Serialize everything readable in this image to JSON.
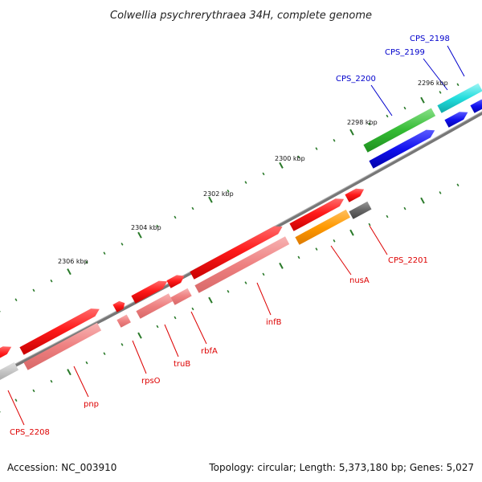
{
  "title": "Colwellia psychrerythraea 34H, complete genome",
  "accession": "Accession: NC_003910",
  "topology": "Topology: circular; Length: 5,373,180 bp; Genes: 5,027",
  "colors": {
    "backbone": "#777777",
    "tick": "#2a7a2a",
    "red_gene": "#ff1a1a",
    "pink_gene": "#f08080",
    "orange_gene": "#ff9900",
    "grey_gene": "#707070",
    "lightgrey_gene": "#c8c8c8",
    "green_gene": "#33bb33",
    "blue_gene": "#1010ee",
    "cyan_gene": "#22dddd",
    "red_label": "#dd0000",
    "blue_label": "#0000cc"
  },
  "scale_labels": [
    {
      "text": "2296 kbp"
    },
    {
      "text": "2298 kbp"
    },
    {
      "text": "2300 kbp"
    },
    {
      "text": "2302 kbp"
    },
    {
      "text": "2304 kbp"
    },
    {
      "text": "2306 kbp"
    }
  ],
  "gene_labels": [
    {
      "text": "CPS_2198",
      "color": "blue"
    },
    {
      "text": "CPS_2199",
      "color": "blue"
    },
    {
      "text": "CPS_2200",
      "color": "blue"
    },
    {
      "text": "CPS_2201",
      "color": "red"
    },
    {
      "text": "nusA",
      "color": "red"
    },
    {
      "text": "infB",
      "color": "red"
    },
    {
      "text": "rbfA",
      "color": "red"
    },
    {
      "text": "truB",
      "color": "red"
    },
    {
      "text": "rpsO",
      "color": "red"
    },
    {
      "text": "pnp",
      "color": "red"
    },
    {
      "text": "CPS_2208",
      "color": "red"
    }
  ]
}
